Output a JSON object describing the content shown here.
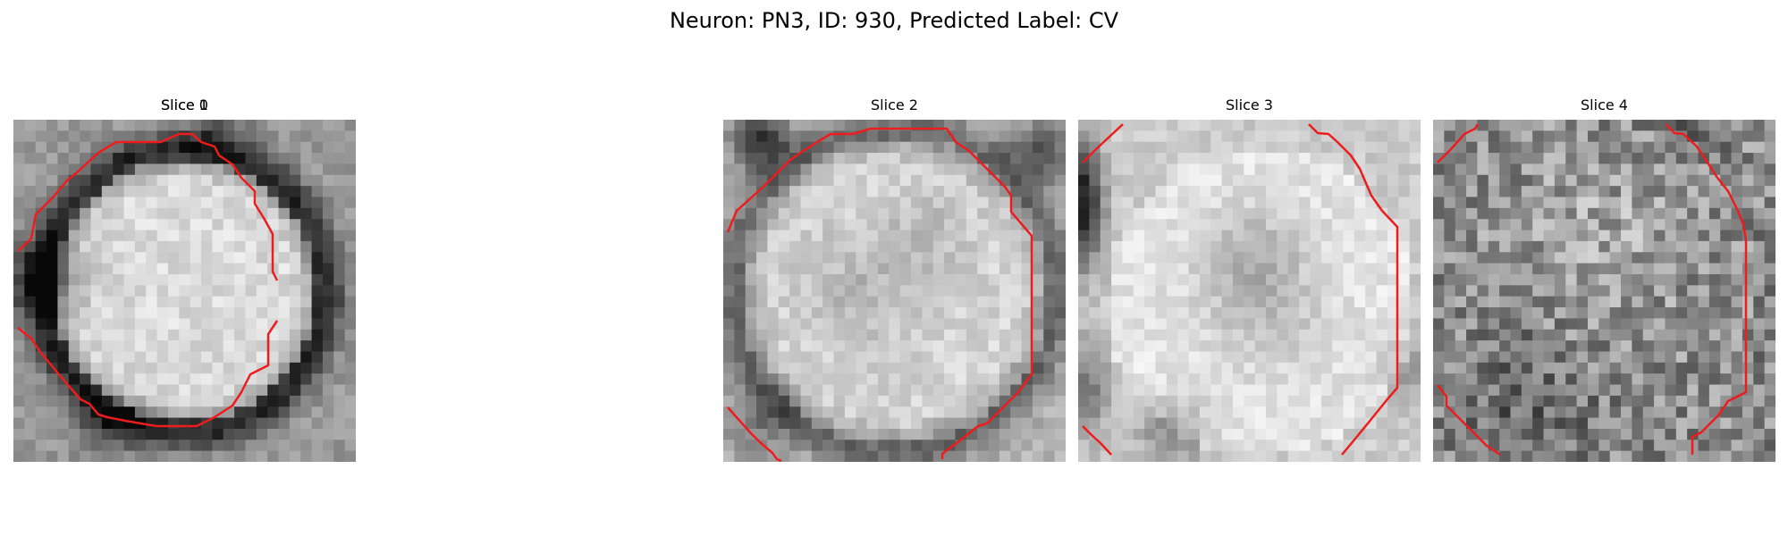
{
  "figure": {
    "title": "Neuron: PN3, ID: 930, Predicted Label: CV"
  },
  "style": {
    "contour_color": "#ee1c1c",
    "colormap": "grayscale"
  },
  "slices": [
    {
      "title": "Slice 0",
      "pattern": "ring-with-dark-blobs",
      "contour_shape": "closed-octagon"
    },
    {
      "title": "Slice 1",
      "pattern": "bright-circle-dark-ring",
      "contour_shape": "open-octagon-arcs"
    },
    {
      "title": "Slice 2",
      "pattern": "bright-circle-gray-center",
      "contour_shape": "open-large-arcs"
    },
    {
      "title": "Slice 3",
      "pattern": "bright-circle-dark-left-edge",
      "contour_shape": "open-right-arc"
    },
    {
      "title": "Slice 4",
      "pattern": "dark-noisy-texture",
      "contour_shape": "corner-arcs"
    }
  ]
}
